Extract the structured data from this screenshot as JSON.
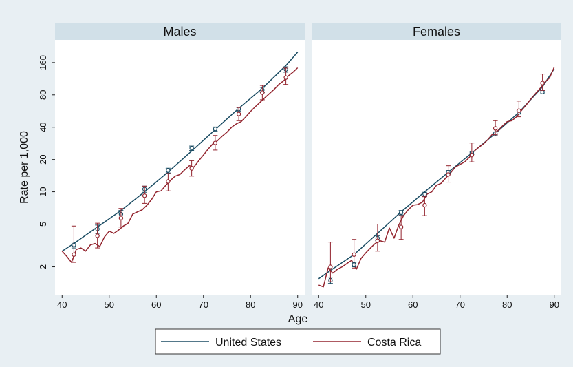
{
  "chart_data": {
    "type": "line",
    "y_label": "Rate per 1,000",
    "x_label": "Age",
    "y_scale": "log",
    "y_ticks": [
      2,
      5,
      10,
      20,
      40,
      80,
      160
    ],
    "x_ticks": [
      40,
      50,
      60,
      70,
      80,
      90
    ],
    "xlim": [
      38.5,
      91.5
    ],
    "ylim": [
      1.1,
      260
    ],
    "legend": {
      "position": "bottom",
      "entries": [
        {
          "label": "United States",
          "color": "#1a4c63"
        },
        {
          "label": "Costa Rica",
          "color": "#93242e"
        }
      ]
    },
    "panels": [
      {
        "title": "Males",
        "series": [
          {
            "name": "United States",
            "color": "#1a4c63",
            "x": [
              40,
              42.5,
              47.5,
              52.5,
              57.5,
              62.5,
              67.5,
              72.5,
              77.5,
              82.5,
              87.5,
              90
            ],
            "y": [
              2.8,
              3.3,
              4.7,
              6.7,
              10,
              15.3,
              24,
              38,
              60,
              92,
              150,
              200
            ]
          },
          {
            "name": "Costa Rica",
            "color": "#93242e",
            "x": [
              40,
              41,
              42,
              43,
              44,
              45,
              46,
              47,
              48,
              49,
              50,
              51,
              52,
              53,
              54,
              55,
              56,
              57,
              58,
              59,
              60,
              61,
              62,
              63,
              64,
              65,
              66,
              67,
              68,
              69,
              70,
              71,
              72,
              73,
              74,
              75,
              76,
              77,
              78,
              79,
              80,
              81,
              82,
              83,
              84,
              85,
              86,
              87,
              88,
              89,
              90
            ],
            "y": [
              2.8,
              2.5,
              2.2,
              2.9,
              3.0,
              2.8,
              3.2,
              3.3,
              3.1,
              3.8,
              4.3,
              4.1,
              4.4,
              4.8,
              5.1,
              6.2,
              6.5,
              6.8,
              7.5,
              8.5,
              10,
              10.2,
              11.5,
              12.8,
              14,
              14.5,
              16,
              17.5,
              17,
              19.5,
              22,
              25,
              28,
              30,
              33,
              36,
              40,
              43,
              45,
              50,
              56,
              62,
              68,
              75,
              82,
              90,
              100,
              108,
              120,
              130,
              143
            ]
          }
        ],
        "error_bars": [
          {
            "name": "United States",
            "color": "#1a4c63",
            "points": [
              {
                "x": 42.5,
                "y": 3.2,
                "lo": 3.0,
                "hi": 3.4
              },
              {
                "x": 47.5,
                "y": 4.5,
                "lo": 4.1,
                "hi": 4.9
              },
              {
                "x": 52.5,
                "y": 6.2,
                "lo": 5.7,
                "hi": 6.7
              },
              {
                "x": 57.5,
                "y": 10.6,
                "lo": 9.9,
                "hi": 11.3
              },
              {
                "x": 62.5,
                "y": 15.8,
                "lo": 15.0,
                "hi": 16.6
              },
              {
                "x": 67.5,
                "y": 25.5,
                "lo": 24.3,
                "hi": 26.7
              },
              {
                "x": 72.5,
                "y": 38.5,
                "lo": 36.8,
                "hi": 40.2
              },
              {
                "x": 77.5,
                "y": 59,
                "lo": 56.5,
                "hi": 61.5
              },
              {
                "x": 82.5,
                "y": 89,
                "lo": 84,
                "hi": 94
              },
              {
                "x": 87.5,
                "y": 138,
                "lo": 130,
                "hi": 146
              }
            ]
          },
          {
            "name": "Costa Rica",
            "color": "#93242e",
            "points": [
              {
                "x": 42.5,
                "y": 2.6,
                "lo": 2.2,
                "hi": 4.8
              },
              {
                "x": 47.5,
                "y": 3.9,
                "lo": 3.0,
                "hi": 5.1
              },
              {
                "x": 52.5,
                "y": 5.7,
                "lo": 4.7,
                "hi": 7.0
              },
              {
                "x": 57.5,
                "y": 9.2,
                "lo": 7.8,
                "hi": 11.3
              },
              {
                "x": 62.5,
                "y": 12.5,
                "lo": 10.2,
                "hi": 14.8
              },
              {
                "x": 67.5,
                "y": 16.5,
                "lo": 14.0,
                "hi": 19.5
              },
              {
                "x": 72.5,
                "y": 28.5,
                "lo": 24.5,
                "hi": 33.5
              },
              {
                "x": 77.5,
                "y": 53,
                "lo": 46,
                "hi": 61
              },
              {
                "x": 82.5,
                "y": 84,
                "lo": 72,
                "hi": 98
              },
              {
                "x": 87.5,
                "y": 116,
                "lo": 100,
                "hi": 142
              }
            ]
          }
        ]
      },
      {
        "title": "Females",
        "series": [
          {
            "name": "United States",
            "color": "#1a4c63",
            "x": [
              40,
              42.5,
              47.5,
              52.5,
              57.5,
              62.5,
              67.5,
              72.5,
              77.5,
              82.5,
              87.5,
              90
            ],
            "y": [
              1.55,
              1.85,
              2.6,
              4.1,
              6.5,
              10,
              15.2,
              23,
              35,
              55,
              95,
              140
            ]
          },
          {
            "name": "Costa Rica",
            "color": "#93242e",
            "x": [
              40,
              41,
              42,
              43,
              44,
              45,
              46,
              47,
              48,
              49,
              50,
              51,
              52,
              53,
              54,
              55,
              56,
              57,
              58,
              59,
              60,
              61,
              62,
              63,
              64,
              65,
              66,
              67,
              68,
              69,
              70,
              71,
              72,
              73,
              74,
              75,
              76,
              77,
              78,
              79,
              80,
              81,
              82,
              83,
              84,
              85,
              86,
              87,
              88,
              89,
              90
            ],
            "y": [
              1.35,
              1.3,
              1.95,
              1.75,
              1.9,
              2.0,
              2.15,
              2.3,
              1.9,
              2.4,
              2.7,
              3.0,
              3.3,
              3.5,
              3.4,
              4.6,
              3.7,
              4.9,
              6.0,
              6.8,
              7.5,
              7.6,
              8.0,
              9.5,
              10,
              11.5,
              12,
              13.5,
              15,
              17,
              18,
              19,
              21,
              24,
              26,
              28,
              31,
              35,
              37,
              41,
              45,
              46,
              50,
              57,
              64,
              73,
              82,
              92,
              105,
              115,
              145
            ]
          }
        ],
        "error_bars": [
          {
            "name": "United States",
            "color": "#1a4c63",
            "points": [
              {
                "x": 42.5,
                "y": 1.5,
                "lo": 1.4,
                "hi": 1.6
              },
              {
                "x": 47.5,
                "y": 2.1,
                "lo": 2.0,
                "hi": 2.2
              },
              {
                "x": 52.5,
                "y": 3.7,
                "lo": 3.5,
                "hi": 3.9
              },
              {
                "x": 57.5,
                "y": 6.4,
                "lo": 6.1,
                "hi": 6.7
              },
              {
                "x": 62.5,
                "y": 9.5,
                "lo": 9.1,
                "hi": 9.9
              },
              {
                "x": 67.5,
                "y": 15.2,
                "lo": 14.6,
                "hi": 15.8
              },
              {
                "x": 72.5,
                "y": 23,
                "lo": 22.2,
                "hi": 23.8
              },
              {
                "x": 77.5,
                "y": 35,
                "lo": 33.8,
                "hi": 36.2
              },
              {
                "x": 82.5,
                "y": 55,
                "lo": 53,
                "hi": 57
              },
              {
                "x": 87.5,
                "y": 85,
                "lo": 82,
                "hi": 88
              }
            ]
          },
          {
            "name": "Costa Rica",
            "color": "#93242e",
            "points": [
              {
                "x": 42.5,
                "y": 2.0,
                "lo": 1.45,
                "hi": 3.4
              },
              {
                "x": 47.5,
                "y": 2.6,
                "lo": 1.95,
                "hi": 3.6
              },
              {
                "x": 52.5,
                "y": 3.5,
                "lo": 2.8,
                "hi": 5.0
              },
              {
                "x": 57.5,
                "y": 4.7,
                "lo": 3.6,
                "hi": 6.0
              },
              {
                "x": 62.5,
                "y": 7.5,
                "lo": 6.0,
                "hi": 9.0
              },
              {
                "x": 67.5,
                "y": 14.5,
                "lo": 12.3,
                "hi": 17.5
              },
              {
                "x": 72.5,
                "y": 22,
                "lo": 19.0,
                "hi": 28.5
              },
              {
                "x": 77.5,
                "y": 39,
                "lo": 34,
                "hi": 46
              },
              {
                "x": 82.5,
                "y": 57,
                "lo": 50,
                "hi": 70
              },
              {
                "x": 87.5,
                "y": 103,
                "lo": 88,
                "hi": 125
              }
            ]
          }
        ]
      }
    ]
  }
}
